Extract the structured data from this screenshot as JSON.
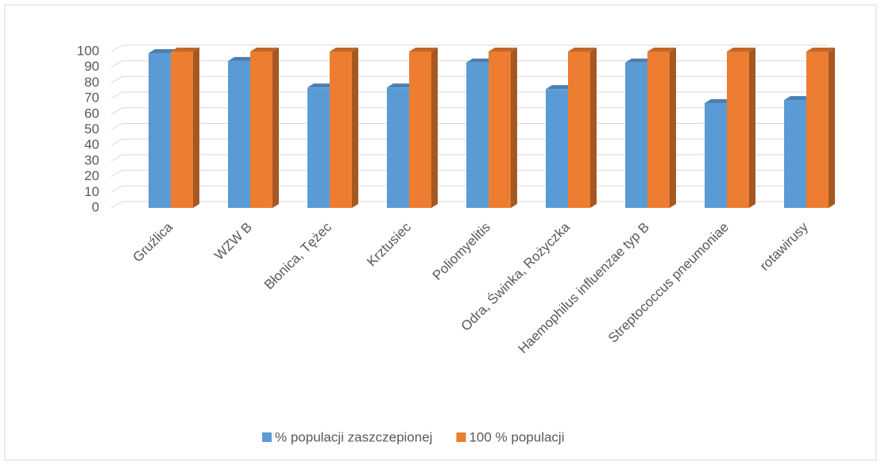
{
  "chart_data": {
    "type": "bar3d",
    "categories": [
      "Gruźlica",
      "WZW B",
      "Błonica, Tężec",
      "Krztusiec",
      "Poliomyelitis",
      "Odra, Świnka, Rożyczka",
      "Haemophilus influenzae typ B",
      "Streptococcus pneumoniae",
      "rotawirusy"
    ],
    "series": [
      {
        "name": "% populacji zaszczepionej",
        "color": "#5b9bd5",
        "values": [
          99,
          94,
          77,
          77,
          93,
          76,
          93,
          67,
          69
        ]
      },
      {
        "name": "100 % populacji",
        "color": "#ed7d31",
        "values": [
          100,
          100,
          100,
          100,
          100,
          100,
          100,
          100,
          100
        ]
      }
    ],
    "ylim": [
      0,
      100
    ],
    "yticks": [
      0,
      10,
      20,
      30,
      40,
      50,
      60,
      70,
      80,
      90,
      100
    ],
    "grid": true,
    "legend": "bottom"
  }
}
